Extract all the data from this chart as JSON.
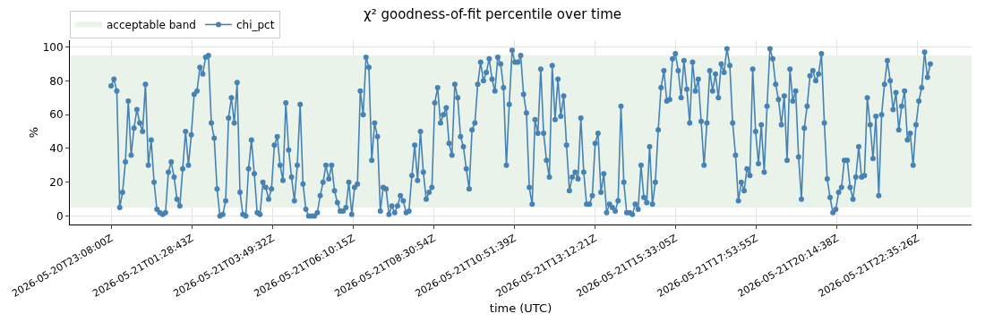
{
  "chart_data": {
    "type": "line",
    "title": "χ² goodness-of-fit percentile over time",
    "xlabel": "time (UTC)",
    "ylabel": "%",
    "x": [
      "2026-05-20T23:08",
      "2026-05-20T23:13",
      "2026-05-20T23:18",
      "2026-05-20T23:23",
      "2026-05-20T23:28",
      "2026-05-20T23:33",
      "2026-05-20T23:38",
      "2026-05-20T23:43",
      "2026-05-20T23:48",
      "2026-05-20T23:53",
      "2026-05-20T23:58",
      "2026-05-21T00:03",
      "2026-05-21T00:08",
      "2026-05-21T00:13",
      "2026-05-21T00:18",
      "2026-05-21T00:23",
      "2026-05-21T00:28",
      "2026-05-21T00:33",
      "2026-05-21T00:38",
      "2026-05-21T00:43",
      "2026-05-21T00:48",
      "2026-05-21T00:53",
      "2026-05-21T00:58",
      "2026-05-21T01:03",
      "2026-05-21T01:08",
      "2026-05-21T01:13",
      "2026-05-21T01:18",
      "2026-05-21T01:23",
      "2026-05-21T01:28",
      "2026-05-21T01:33",
      "2026-05-21T01:38",
      "2026-05-21T01:43",
      "2026-05-21T01:48",
      "2026-05-21T01:53",
      "2026-05-21T01:58",
      "2026-05-21T02:03",
      "2026-05-21T02:08",
      "2026-05-21T02:13",
      "2026-05-21T02:18",
      "2026-05-21T02:23",
      "2026-05-21T02:28",
      "2026-05-21T02:33",
      "2026-05-21T02:38",
      "2026-05-21T02:43",
      "2026-05-21T02:48",
      "2026-05-21T02:53",
      "2026-05-21T02:58",
      "2026-05-21T03:03",
      "2026-05-21T03:08",
      "2026-05-21T03:13",
      "2026-05-21T03:18",
      "2026-05-21T03:23",
      "2026-05-21T03:28",
      "2026-05-21T03:33",
      "2026-05-21T03:38",
      "2026-05-21T03:43",
      "2026-05-21T03:48",
      "2026-05-21T03:53",
      "2026-05-21T03:58",
      "2026-05-21T04:03",
      "2026-05-21T04:08",
      "2026-05-21T04:13",
      "2026-05-21T04:18",
      "2026-05-21T04:23",
      "2026-05-21T04:28",
      "2026-05-21T04:33",
      "2026-05-21T04:38",
      "2026-05-21T04:43",
      "2026-05-21T04:48",
      "2026-05-21T04:53",
      "2026-05-21T04:58",
      "2026-05-21T05:03",
      "2026-05-21T05:08",
      "2026-05-21T05:13",
      "2026-05-21T05:18",
      "2026-05-21T05:23",
      "2026-05-21T05:28",
      "2026-05-21T05:33",
      "2026-05-21T05:38",
      "2026-05-21T05:43",
      "2026-05-21T05:48",
      "2026-05-21T05:53",
      "2026-05-21T05:58",
      "2026-05-21T06:03",
      "2026-05-21T06:08",
      "2026-05-21T06:13",
      "2026-05-21T06:18",
      "2026-05-21T06:23",
      "2026-05-21T06:28",
      "2026-05-21T06:33",
      "2026-05-21T06:38",
      "2026-05-21T06:43",
      "2026-05-21T06:48",
      "2026-05-21T06:53",
      "2026-05-21T06:58",
      "2026-05-21T07:03",
      "2026-05-21T07:08",
      "2026-05-21T07:13",
      "2026-05-21T07:18",
      "2026-05-21T07:23",
      "2026-05-21T07:28",
      "2026-05-21T07:33",
      "2026-05-21T07:38",
      "2026-05-21T07:43",
      "2026-05-21T07:48",
      "2026-05-21T07:53",
      "2026-05-21T07:58",
      "2026-05-21T08:03",
      "2026-05-21T08:08",
      "2026-05-21T08:13",
      "2026-05-21T08:18",
      "2026-05-21T08:23",
      "2026-05-21T08:28",
      "2026-05-21T08:33",
      "2026-05-21T08:38",
      "2026-05-21T08:43",
      "2026-05-21T08:48",
      "2026-05-21T08:53",
      "2026-05-21T08:58",
      "2026-05-21T09:03",
      "2026-05-21T09:08",
      "2026-05-21T09:13",
      "2026-05-21T09:18",
      "2026-05-21T09:23",
      "2026-05-21T09:28",
      "2026-05-21T09:33",
      "2026-05-21T09:38",
      "2026-05-21T09:43",
      "2026-05-21T09:48",
      "2026-05-21T09:53",
      "2026-05-21T09:58",
      "2026-05-21T10:03",
      "2026-05-21T10:08",
      "2026-05-21T10:13",
      "2026-05-21T10:18",
      "2026-05-21T10:23",
      "2026-05-21T10:28",
      "2026-05-21T10:33",
      "2026-05-21T10:38",
      "2026-05-21T10:43",
      "2026-05-21T10:48",
      "2026-05-21T10:53",
      "2026-05-21T10:58",
      "2026-05-21T11:03",
      "2026-05-21T11:08",
      "2026-05-21T11:13",
      "2026-05-21T11:18",
      "2026-05-21T11:23",
      "2026-05-21T11:28",
      "2026-05-21T11:33",
      "2026-05-21T11:38",
      "2026-05-21T11:43",
      "2026-05-21T11:48",
      "2026-05-21T11:53",
      "2026-05-21T11:58",
      "2026-05-21T12:03",
      "2026-05-21T12:08",
      "2026-05-21T12:13",
      "2026-05-21T12:18",
      "2026-05-21T12:23",
      "2026-05-21T12:28",
      "2026-05-21T12:33",
      "2026-05-21T12:38",
      "2026-05-21T12:43",
      "2026-05-21T12:48",
      "2026-05-21T12:53",
      "2026-05-21T12:58",
      "2026-05-21T13:03",
      "2026-05-21T13:08",
      "2026-05-21T13:13",
      "2026-05-21T13:18",
      "2026-05-21T13:23",
      "2026-05-21T13:28",
      "2026-05-21T13:33",
      "2026-05-21T13:38",
      "2026-05-21T13:43",
      "2026-05-21T13:48",
      "2026-05-21T13:53",
      "2026-05-21T13:58",
      "2026-05-21T14:03",
      "2026-05-21T14:08",
      "2026-05-21T14:13",
      "2026-05-21T14:18",
      "2026-05-21T14:23",
      "2026-05-21T14:28",
      "2026-05-21T14:33",
      "2026-05-21T14:38",
      "2026-05-21T14:43",
      "2026-05-21T14:48",
      "2026-05-21T14:53",
      "2026-05-21T14:58",
      "2026-05-21T15:03",
      "2026-05-21T15:08",
      "2026-05-21T15:13",
      "2026-05-21T15:18",
      "2026-05-21T15:23",
      "2026-05-21T15:28",
      "2026-05-21T15:33",
      "2026-05-21T15:38",
      "2026-05-21T15:43",
      "2026-05-21T15:48",
      "2026-05-21T15:53",
      "2026-05-21T15:58",
      "2026-05-21T16:03",
      "2026-05-21T16:08",
      "2026-05-21T16:13",
      "2026-05-21T16:18",
      "2026-05-21T16:23",
      "2026-05-21T16:28",
      "2026-05-21T16:33",
      "2026-05-21T16:38",
      "2026-05-21T16:43",
      "2026-05-21T16:48",
      "2026-05-21T16:53",
      "2026-05-21T16:58",
      "2026-05-21T17:03",
      "2026-05-21T17:08",
      "2026-05-21T17:13",
      "2026-05-21T17:18",
      "2026-05-21T17:23",
      "2026-05-21T17:28",
      "2026-05-21T17:33",
      "2026-05-21T17:38",
      "2026-05-21T17:43",
      "2026-05-21T17:48",
      "2026-05-21T17:53",
      "2026-05-21T17:58",
      "2026-05-21T18:03",
      "2026-05-21T18:08",
      "2026-05-21T18:13",
      "2026-05-21T18:18",
      "2026-05-21T18:23",
      "2026-05-21T18:28",
      "2026-05-21T18:33",
      "2026-05-21T18:38",
      "2026-05-21T18:43",
      "2026-05-21T18:48",
      "2026-05-21T18:53",
      "2026-05-21T18:58",
      "2026-05-21T19:03",
      "2026-05-21T19:08",
      "2026-05-21T19:13",
      "2026-05-21T19:18",
      "2026-05-21T19:23",
      "2026-05-21T19:28",
      "2026-05-21T19:33",
      "2026-05-21T19:38",
      "2026-05-21T19:43",
      "2026-05-21T19:48",
      "2026-05-21T19:53",
      "2026-05-21T19:58",
      "2026-05-21T20:03",
      "2026-05-21T20:08",
      "2026-05-21T20:13",
      "2026-05-21T20:18",
      "2026-05-21T20:23",
      "2026-05-21T20:28",
      "2026-05-21T20:33",
      "2026-05-21T20:38",
      "2026-05-21T20:43",
      "2026-05-21T20:48",
      "2026-05-21T20:53",
      "2026-05-21T20:58",
      "2026-05-21T21:03",
      "2026-05-21T21:08",
      "2026-05-21T21:13",
      "2026-05-21T21:18",
      "2026-05-21T21:23",
      "2026-05-21T21:28",
      "2026-05-21T21:33",
      "2026-05-21T21:38",
      "2026-05-21T21:43",
      "2026-05-21T21:48",
      "2026-05-21T21:53",
      "2026-05-21T21:58",
      "2026-05-21T22:03",
      "2026-05-21T22:08",
      "2026-05-21T22:13",
      "2026-05-21T22:18",
      "2026-05-21T22:23",
      "2026-05-21T22:28",
      "2026-05-21T22:33",
      "2026-05-21T22:38",
      "2026-05-21T22:43",
      "2026-05-21T22:48",
      "2026-05-21T22:53",
      "2026-05-21T22:58"
    ],
    "series": [
      {
        "name": "chi_pct",
        "color": "#4682b4",
        "values": [
          77,
          81,
          74,
          5,
          14,
          32,
          68,
          36,
          52,
          63,
          55,
          50,
          78,
          30,
          45,
          20,
          4,
          2,
          1,
          2,
          26,
          32,
          23,
          10,
          6,
          28,
          50,
          30,
          48,
          72,
          74,
          88,
          84,
          94,
          95,
          55,
          46,
          16,
          0,
          1,
          9,
          58,
          70,
          55,
          79,
          14,
          1,
          0,
          28,
          45,
          25,
          2,
          1,
          20,
          17,
          10,
          16,
          42,
          47,
          30,
          21,
          67,
          39,
          23,
          9,
          30,
          66,
          19,
          4,
          0,
          0,
          0,
          2,
          12,
          20,
          30,
          22,
          30,
          15,
          8,
          3,
          3,
          5,
          20,
          1,
          17,
          19,
          74,
          60,
          94,
          88,
          33,
          55,
          47,
          3,
          17,
          16,
          1,
          6,
          2,
          6,
          12,
          9,
          2,
          3,
          24,
          42,
          21,
          50,
          26,
          10,
          14,
          17,
          67,
          76,
          55,
          60,
          64,
          43,
          36,
          78,
          70,
          47,
          41,
          28,
          16,
          51,
          55,
          78,
          91,
          80,
          85,
          93,
          81,
          74,
          94,
          90,
          76,
          30,
          66,
          98,
          91,
          91,
          95,
          72,
          61,
          17,
          7,
          57,
          49,
          87,
          49,
          33,
          23,
          89,
          57,
          81,
          59,
          71,
          42,
          15,
          23,
          26,
          22,
          58,
          26,
          7,
          7,
          12,
          43,
          49,
          14,
          25,
          2,
          7,
          5,
          3,
          9,
          65,
          20,
          2,
          2,
          1,
          7,
          4,
          30,
          11,
          8,
          41,
          7,
          20,
          51,
          76,
          86,
          68,
          69,
          93,
          96,
          86,
          70,
          92,
          75,
          55,
          91,
          74,
          81,
          56,
          30,
          55,
          86,
          74,
          84,
          70,
          90,
          85,
          99,
          89,
          55,
          36,
          9,
          20,
          15,
          28,
          24,
          87,
          50,
          31,
          54,
          26,
          65,
          99,
          93,
          78,
          69,
          54,
          71,
          33,
          87,
          68,
          74,
          35,
          10,
          52,
          65,
          83,
          86,
          80,
          84,
          96,
          55,
          22,
          11,
          2,
          4,
          14,
          17,
          33,
          33,
          17,
          10,
          23,
          41,
          23,
          24,
          70,
          54,
          34,
          59,
          12,
          60,
          78,
          92,
          80,
          63,
          73,
          51,
          65,
          74,
          45,
          49,
          30,
          54,
          68,
          76,
          97,
          82,
          90
        ]
      }
    ],
    "xlim": [
      "2026-05-20T21:56",
      "2026-05-22T00:10"
    ],
    "xticks": [
      {
        "value": "2026-05-20T23:08:00",
        "label": "2026-05-20T23:08:00Z"
      },
      {
        "value": "2026-05-21T01:28:43",
        "label": "2026-05-21T01:28:43Z"
      },
      {
        "value": "2026-05-21T03:49:32",
        "label": "2026-05-21T03:49:32Z"
      },
      {
        "value": "2026-05-21T06:10:15",
        "label": "2026-05-21T06:10:15Z"
      },
      {
        "value": "2026-05-21T08:30:54",
        "label": "2026-05-21T08:30:54Z"
      },
      {
        "value": "2026-05-21T10:51:39",
        "label": "2026-05-21T10:51:39Z"
      },
      {
        "value": "2026-05-21T13:12:21",
        "label": "2026-05-21T13:12:21Z"
      },
      {
        "value": "2026-05-21T15:33:05",
        "label": "2026-05-21T15:33:05Z"
      },
      {
        "value": "2026-05-21T17:53:55",
        "label": "2026-05-21T17:53:55Z"
      },
      {
        "value": "2026-05-21T20:14:38",
        "label": "2026-05-21T20:14:38Z"
      },
      {
        "value": "2026-05-21T22:35:26",
        "label": "2026-05-21T22:35:26Z"
      }
    ],
    "ylim": [
      -5,
      104
    ],
    "yticks": [
      0,
      20,
      40,
      60,
      80,
      100
    ],
    "bands": [
      {
        "axis": "y",
        "from": 5,
        "to": 95,
        "label": "acceptable band",
        "color": "#e9f3e9"
      }
    ],
    "grid": true,
    "legend": "top left",
    "marker": "circle",
    "line_style": "solid"
  }
}
